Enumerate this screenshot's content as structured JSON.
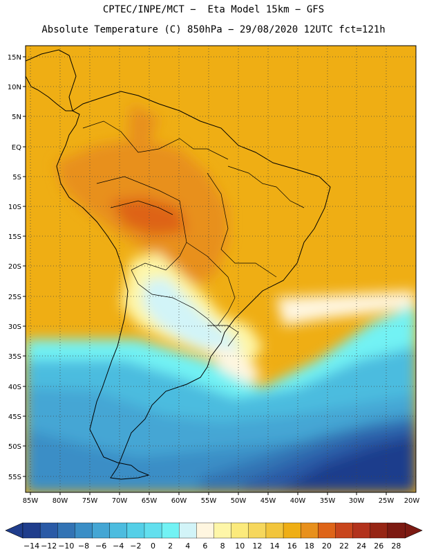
{
  "header": {
    "line1": "CPTEC/INPE/MCT −  Eta Model 15km − GFS",
    "line2": "Absolute Temperature (C) 850hPa − 29/08/2020 12UTC fct=121h"
  },
  "map": {
    "lat_labels": [
      "15N",
      "10N",
      "5N",
      "EQ",
      "5S",
      "10S",
      "15S",
      "20S",
      "25S",
      "30S",
      "35S",
      "40S",
      "45S",
      "50S",
      "55S"
    ],
    "lon_labels": [
      "85W",
      "80W",
      "75W",
      "70W",
      "65W",
      "60W",
      "55W",
      "50W",
      "45W",
      "40W",
      "35W",
      "30W",
      "25W",
      "20W"
    ]
  },
  "colorbar": {
    "labels": [
      "−14",
      "−12",
      "−10",
      "−8",
      "−6",
      "−4",
      "−2",
      "0",
      "2",
      "4",
      "6",
      "8",
      "10",
      "12",
      "14",
      "16",
      "18",
      "20",
      "22",
      "24",
      "26",
      "28"
    ],
    "colors": [
      "#1f3d8c",
      "#2a5aa6",
      "#3273b4",
      "#3a8ec6",
      "#44a6d4",
      "#4cbcdf",
      "#54cfe7",
      "#62dfee",
      "#72f2f4",
      "#d2f4f8",
      "#fff6e0",
      "#fef6a8",
      "#fbea7c",
      "#f6d75c",
      "#f2c53c",
      "#efae14",
      "#e8901c",
      "#de6418",
      "#c8451c",
      "#b2321c",
      "#962514",
      "#7c1a12"
    ]
  }
}
